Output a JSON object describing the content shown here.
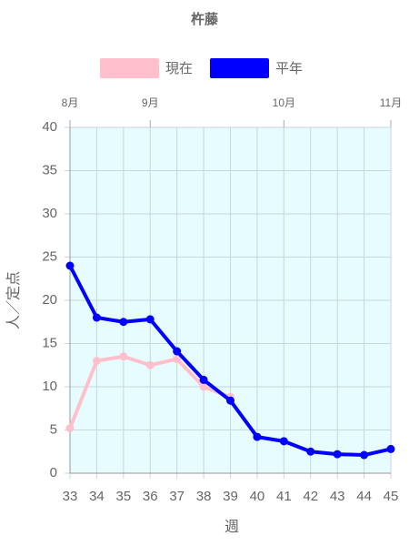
{
  "chart_data": {
    "type": "line",
    "title": "杵藤",
    "x": [
      33,
      34,
      35,
      36,
      37,
      38,
      39,
      40,
      41,
      42,
      43,
      44,
      45
    ],
    "series": [
      {
        "name": "現在",
        "color": "#ffc0cb",
        "values": [
          5.2,
          13.0,
          13.5,
          12.5,
          13.2,
          10.0,
          8.8,
          null,
          null,
          null,
          null,
          null,
          null
        ]
      },
      {
        "name": "平年",
        "color": "#0000ff",
        "values": [
          24.0,
          18.0,
          17.5,
          17.8,
          14.1,
          10.8,
          8.4,
          4.2,
          3.7,
          2.5,
          2.2,
          2.1,
          2.8
        ]
      }
    ],
    "xlabel": "週",
    "ylabel": "人／定点",
    "xlim": [
      33,
      45
    ],
    "xticks": [
      33,
      34,
      35,
      36,
      37,
      38,
      39,
      40,
      41,
      42,
      43,
      44,
      45
    ],
    "x2ticks": [
      {
        "value": 33,
        "label": "8月"
      },
      {
        "value": 36,
        "label": "9月"
      },
      {
        "value": 41,
        "label": "10月"
      },
      {
        "value": 45,
        "label": "11月"
      }
    ],
    "ylim": [
      0,
      40
    ],
    "yticks": [
      0,
      5,
      10,
      15,
      20,
      25,
      30,
      35,
      40
    ],
    "grid": true,
    "plot_background": "#e6fcff"
  }
}
